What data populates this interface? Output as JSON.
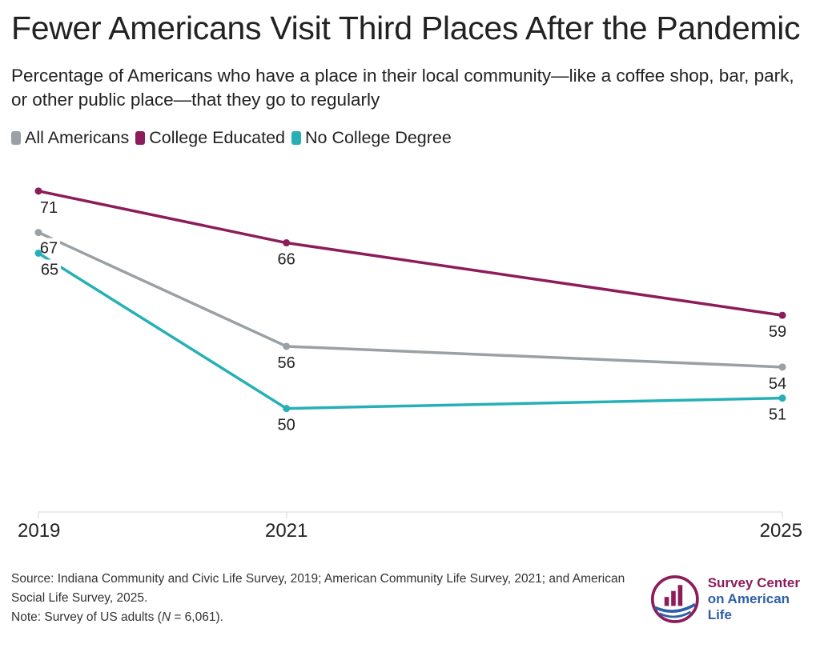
{
  "title": "Fewer Americans Visit Third Places After the Pandemic",
  "subtitle": "Percentage of Americans who have a place in their local community—like a coffee shop, bar, park, or other public place—that they go to regularly",
  "source_line1": "Source: Indiana Community and Civic Life Survey, 2019; American Community Life Survey, 2021; and American",
  "source_line2": "Social Life Survey, 2025.",
  "note_prefix": "Note: Survey of US adults (",
  "note_n": "N",
  "note_suffix": " = 6,061).",
  "logo": {
    "line1": "Survey Center",
    "line2": "on American Life",
    "colors": {
      "magenta": "#8c1d5a",
      "blue": "#2f5fa8"
    }
  },
  "chart_data": {
    "type": "line",
    "title": "Fewer Americans Visit Third Places After the Pandemic",
    "x": [
      "2019",
      "2021",
      "2025"
    ],
    "x_numeric": [
      2019,
      2021,
      2025
    ],
    "ylim": [
      40,
      74
    ],
    "grid": false,
    "legend_position": "top-left",
    "series": [
      {
        "name": "All Americans",
        "color": "#9aa0a4",
        "values": [
          67,
          56,
          54
        ]
      },
      {
        "name": "College Educated",
        "color": "#8c1d5a",
        "values": [
          71,
          66,
          59
        ]
      },
      {
        "name": "No College Degree",
        "color": "#26b0b5",
        "values": [
          65,
          50,
          51
        ]
      }
    ]
  }
}
